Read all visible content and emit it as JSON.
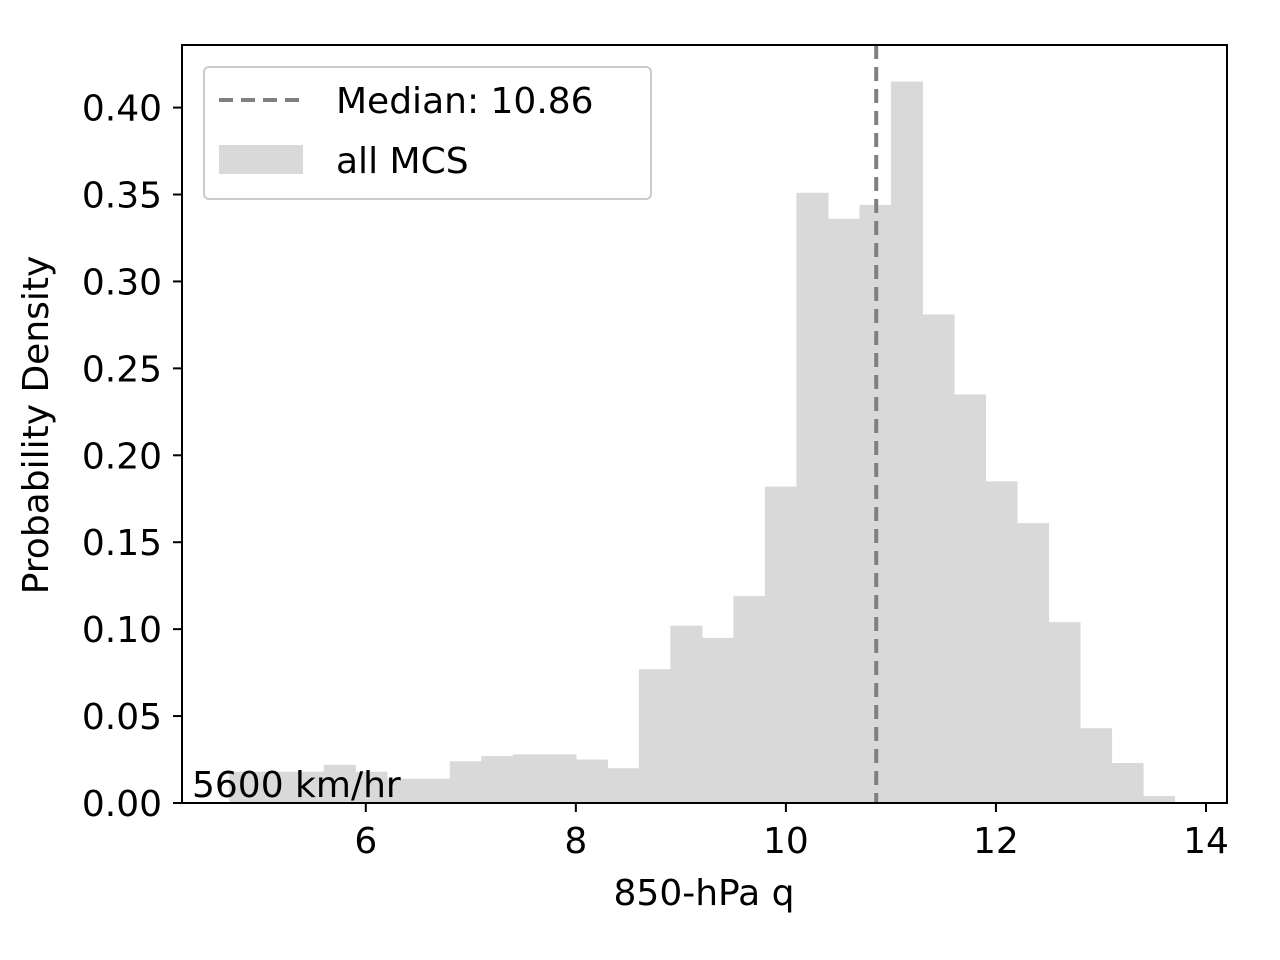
{
  "chart_data": {
    "type": "bar",
    "subtype": "histogram",
    "xlabel": "850-hPa q",
    "ylabel": "Probability Density",
    "xlim": [
      4.25,
      14.2
    ],
    "ylim": [
      0,
      0.436
    ],
    "xticks": [
      6,
      8,
      10,
      12,
      14
    ],
    "xtick_labels": [
      "6",
      "8",
      "10",
      "12",
      "14"
    ],
    "yticks": [
      0,
      0.05,
      0.1,
      0.15,
      0.2,
      0.25,
      0.3,
      0.35,
      0.4
    ],
    "ytick_labels": [
      "0.00",
      "0.05",
      "0.10",
      "0.15",
      "0.20",
      "0.25",
      "0.30",
      "0.35",
      "0.40"
    ],
    "grid": false,
    "legend_position": "top-left",
    "annotation": "5600 km/hr",
    "series": [
      {
        "name": "all MCS",
        "kind": "histogram",
        "color": "#d9d9d9",
        "bin_start": 4.7,
        "bin_width": 0.3,
        "values": [
          0.018,
          0.018,
          0.018,
          0.022,
          0.018,
          0.014,
          0.014,
          0.024,
          0.027,
          0.028,
          0.028,
          0.025,
          0.02,
          0.077,
          0.102,
          0.095,
          0.119,
          0.182,
          0.351,
          0.336,
          0.344,
          0.415,
          0.281,
          0.235,
          0.185,
          0.161,
          0.104,
          0.043,
          0.023,
          0.004
        ]
      }
    ],
    "reference_lines": [
      {
        "name": "Median: 10.86",
        "orientation": "vertical",
        "x": 10.86,
        "color": "#808080",
        "style": "dashed"
      }
    ],
    "legend": {
      "entries": [
        "Median: 10.86",
        "all MCS"
      ]
    }
  }
}
